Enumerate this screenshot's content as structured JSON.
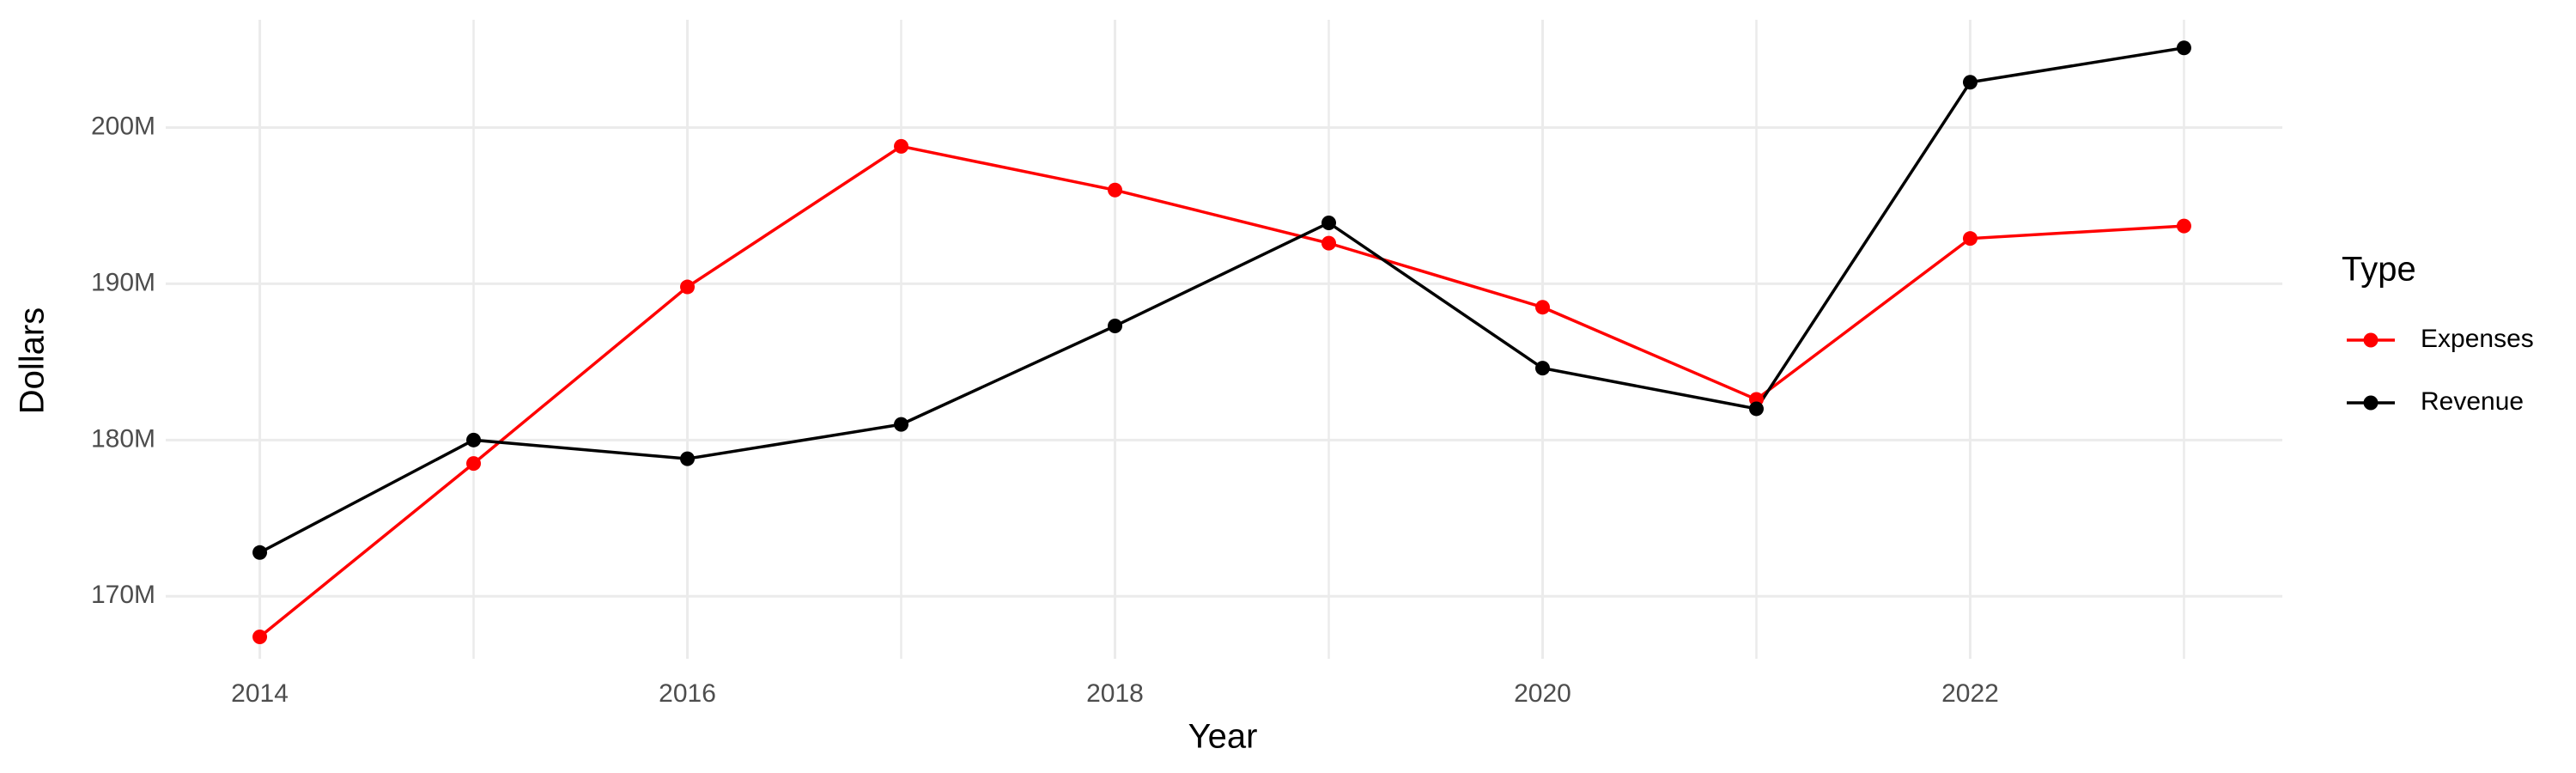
{
  "chart_data": {
    "type": "line",
    "x_label": "Year",
    "y_label": "Dollars",
    "legend_title": "Type",
    "x": [
      2014,
      2015,
      2016,
      2017,
      2018,
      2019,
      2020,
      2021,
      2022,
      2023
    ],
    "series": [
      {
        "name": "Expenses",
        "color": "#ff0000",
        "values": [
          167400000,
          178500000,
          189800000,
          198800000,
          196000000,
          192600000,
          188500000,
          182600000,
          192900000,
          193700000
        ]
      },
      {
        "name": "Revenue",
        "color": "#000000",
        "values": [
          172800000,
          180000000,
          178800000,
          181000000,
          187300000,
          193900000,
          184600000,
          182000000,
          202900000,
          205100000
        ]
      }
    ],
    "xlim": [
      2013.56,
      2023.46
    ],
    "xticks": [
      2014,
      2016,
      2018,
      2020,
      2022
    ],
    "ylim": [
      166000000,
      206900000
    ],
    "yticks": [
      {
        "value": 170000000,
        "label": "170M"
      },
      {
        "value": 180000000,
        "label": "180M"
      },
      {
        "value": 190000000,
        "label": "190M"
      },
      {
        "value": 200000000,
        "label": "200M"
      }
    ],
    "grid": true,
    "legend": "right"
  }
}
